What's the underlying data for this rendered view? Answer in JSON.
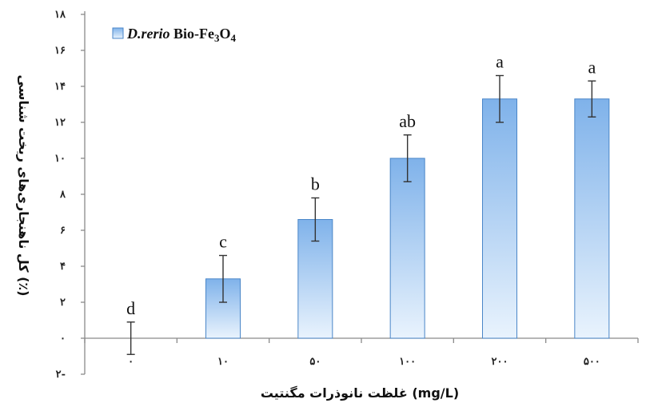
{
  "chart_data": {
    "type": "bar",
    "categories": [
      "۰",
      "۱۰",
      "۵۰",
      "۱۰۰",
      "۲۰۰",
      "۵۰۰"
    ],
    "series": [
      {
        "name": "D.rerio Bio-Fe3O4",
        "values": [
          0,
          3.3,
          6.6,
          10.0,
          13.3,
          13.3
        ],
        "errors": [
          0.9,
          1.3,
          1.2,
          1.3,
          1.3,
          1.0
        ],
        "labels": [
          "d",
          "c",
          "b",
          "ab",
          "a",
          "a"
        ]
      }
    ],
    "yticks": [
      {
        "value": -2,
        "label": "۲-"
      },
      {
        "value": 0,
        "label": "۰"
      },
      {
        "value": 2,
        "label": "۲"
      },
      {
        "value": 4,
        "label": "۴"
      },
      {
        "value": 6,
        "label": "۶"
      },
      {
        "value": 8,
        "label": "۸"
      },
      {
        "value": 10,
        "label": "۱۰"
      },
      {
        "value": 12,
        "label": "۱۲"
      },
      {
        "value": 14,
        "label": "۱۴"
      },
      {
        "value": 16,
        "label": "۱۶"
      },
      {
        "value": 18,
        "label": "۱۸"
      }
    ],
    "ylim": [
      -2,
      18
    ],
    "xlabel": "غلظت نانوذرات مگنتیت (mg/L)",
    "ylabel": "کل ناهنجاری‌های ریخت شناسی (٪)",
    "legend": {
      "position": "top-left",
      "species": "D.rerio",
      "rest": " Bio-Fe",
      "sub1": "3",
      "mid": "O",
      "sub2": "4"
    },
    "colors": {
      "bar_top": "#7fb2ea",
      "bar_bottom": "#e9f3fd",
      "bar_stroke": "#4a86c8",
      "axis": "#8a8a8a",
      "error": "#333333"
    }
  }
}
